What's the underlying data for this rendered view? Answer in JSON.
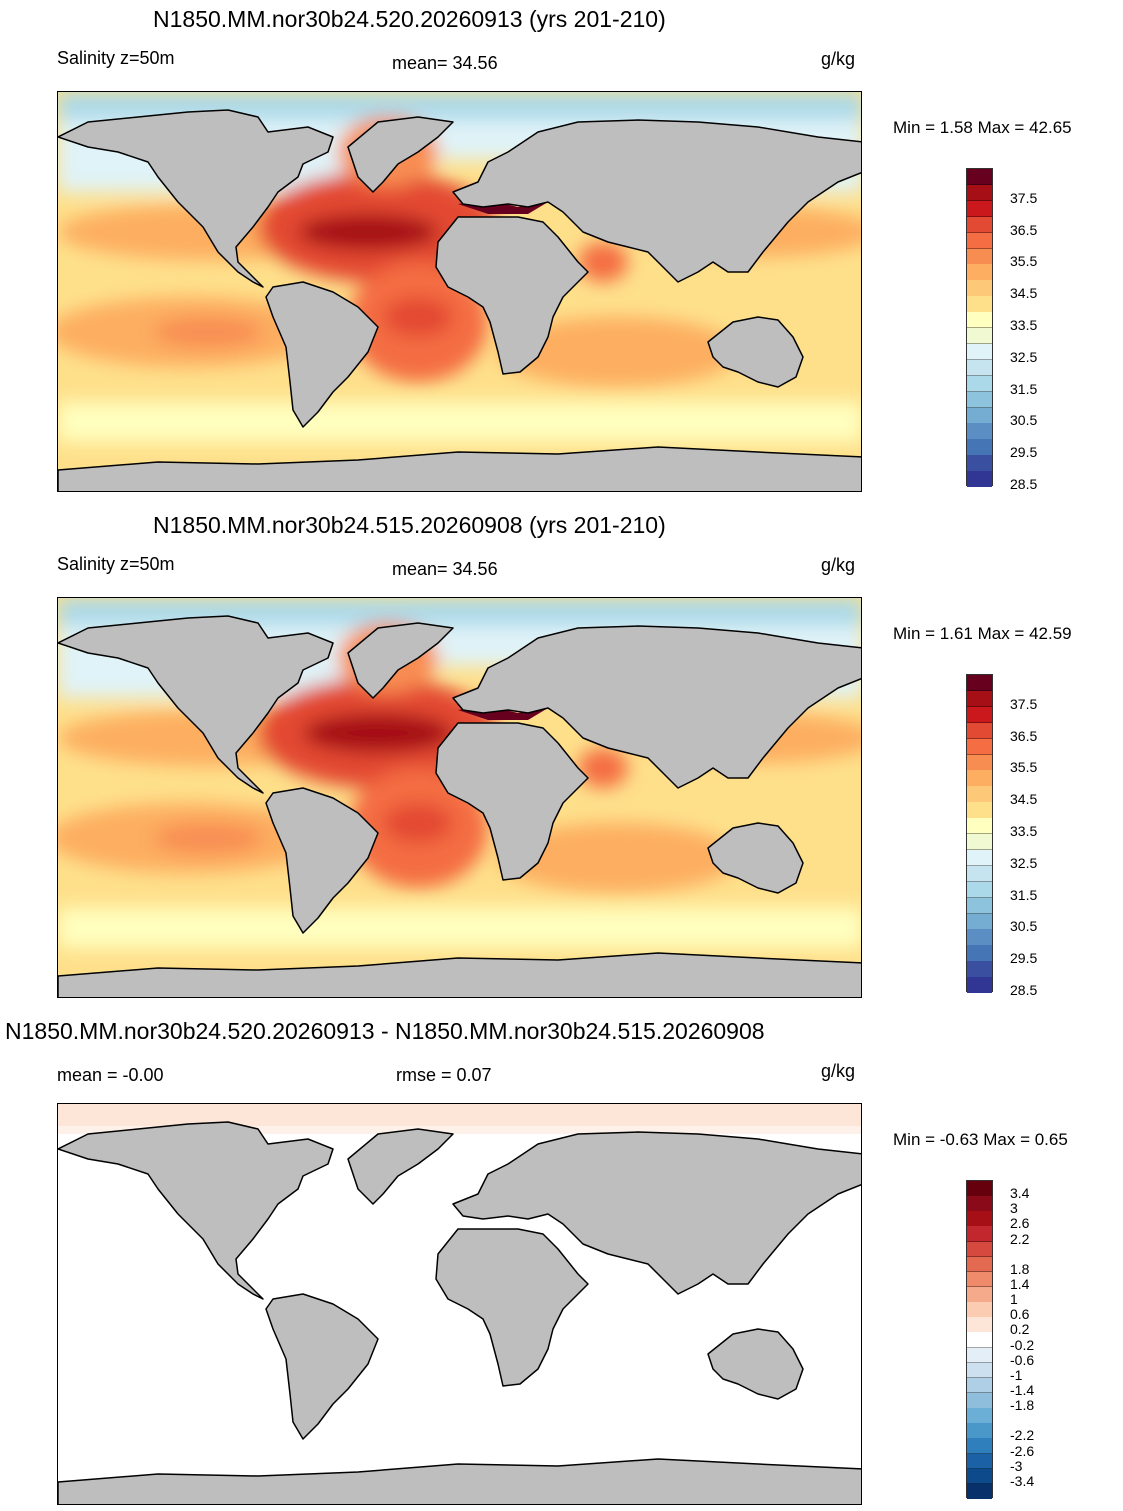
{
  "panels": [
    {
      "title": "N1850.MM.nor30b24.520.20260913 (yrs 201-210)",
      "left_label": "Salinity z=50m",
      "center_label": "mean=  34.56",
      "units": "g/kg",
      "minmax": "Min =   1.58 Max =  42.65"
    },
    {
      "title": "N1850.MM.nor30b24.515.20260908 (yrs 201-210)",
      "left_label": "Salinity z=50m",
      "center_label": "mean=  34.56",
      "units": "g/kg",
      "minmax": "Min =   1.61 Max =  42.59"
    },
    {
      "title": "N1850.MM.nor30b24.520.20260913 - N1850.MM.nor30b24.515.20260908",
      "left_label": "mean =  -0.00",
      "center_label": "rmse =   0.07",
      "units": "g/kg",
      "minmax": "Min =  -0.63 Max =   0.65"
    }
  ],
  "colorbar_salinity": {
    "labels": [
      "37.5",
      "36.5",
      "35.5",
      "34.5",
      "33.5",
      "32.5",
      "31.5",
      "30.5",
      "29.5",
      "28.5"
    ],
    "colors": [
      "#67001f",
      "#a50f15",
      "#cb181d",
      "#e34a33",
      "#f46d43",
      "#f88d52",
      "#fdae61",
      "#fdc877",
      "#fee08b",
      "#ffffbf",
      "#f1f9d3",
      "#e0f3f8",
      "#c6e4ef",
      "#abd9e9",
      "#8dc3dd",
      "#74add1",
      "#5b8ec2",
      "#4575b4",
      "#3a4fa0",
      "#313695"
    ]
  },
  "colorbar_diff": {
    "labels": [
      "3.4",
      "3",
      "2.6",
      "2.2",
      "1.8",
      "1.4",
      "1",
      "0.6",
      "0.2",
      "-0.2",
      "-0.6",
      "-1",
      "-1.4",
      "-1.8",
      "-2.2",
      "-2.6",
      "-3",
      "-3.4"
    ],
    "colors": [
      "#67000d",
      "#8b0a1a",
      "#a50f15",
      "#c2272d",
      "#d6493e",
      "#e36a51",
      "#ef8a6a",
      "#f6aa8c",
      "#fbcbb2",
      "#fde5d8",
      "#ffffff",
      "#e4eef6",
      "#cde0ef",
      "#aecfe6",
      "#8ebedc",
      "#6baed6",
      "#4a97c9",
      "#2f7fbc",
      "#1a62a5",
      "#0d4a8c",
      "#08306b"
    ]
  }
}
